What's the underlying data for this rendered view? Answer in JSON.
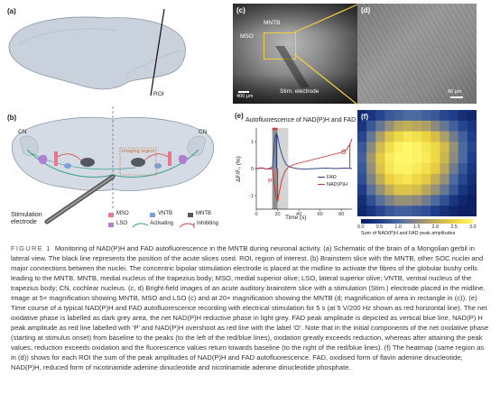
{
  "panels": {
    "a": {
      "label": "(a)",
      "roi_label": "ROI"
    },
    "b": {
      "label": "(b)",
      "cn_left": "CN",
      "cn_right": "CN",
      "imaging_region": "Imaging region",
      "electrode_label": "Stimulation\nelectrode",
      "legend": [
        {
          "name": "MSO",
          "color": "#e8788e"
        },
        {
          "name": "VNTB",
          "color": "#7b9fd6"
        },
        {
          "name": "MNTB",
          "color": "#55575f"
        },
        {
          "name": "LSO",
          "color": "#b17fd0"
        },
        {
          "name": "Activating",
          "color": "#3a9d8c"
        },
        {
          "name": "Inhibiting",
          "color": "#d23c3c"
        }
      ]
    },
    "c": {
      "label": "(c)",
      "mso": "MSO",
      "mntb": "MNTB",
      "stim": "Stim. electrode",
      "scale": "400 μm"
    },
    "d": {
      "label": "(d)",
      "scale": "80 μm"
    },
    "e": {
      "label": "(e)",
      "o_label": "O",
      "p_label": "P"
    },
    "f": {
      "label": "(f)",
      "colorbar_label": "Sum of NAD(P)H and FAD peak amplitudes",
      "ticks": [
        "0.0",
        "0.5",
        "1.0",
        "1.5",
        "2.0",
        "2.5",
        "3.0"
      ]
    }
  },
  "chart_data": {
    "type": "line",
    "title": "Autofluorescence of NAD(P)H and FAD",
    "xlabel": "Time (s)",
    "ylabel": "ΔF/F₀ (%)",
    "xlim": [
      0,
      90
    ],
    "ylim": [
      -1.5,
      1.5
    ],
    "xticks": [
      0,
      20,
      40,
      60,
      80
    ],
    "yticks": [
      -1,
      0,
      1
    ],
    "stimulation_window": [
      15,
      20
    ],
    "series": [
      {
        "name": "FAD",
        "color": "#2b3f86",
        "x": [
          0,
          5,
          10,
          15,
          16,
          17,
          18,
          19,
          20,
          22,
          25,
          28,
          32,
          38,
          45,
          55,
          65,
          75,
          85,
          90
        ],
        "y": [
          0,
          0.02,
          -0.02,
          0.05,
          0.4,
          0.9,
          1.2,
          1.3,
          1.2,
          0.8,
          0.4,
          0.15,
          0.05,
          0.0,
          -0.02,
          0.0,
          0.02,
          0.0,
          0.02,
          0.0
        ]
      },
      {
        "name": "NAD(P)H",
        "color": "#c43030",
        "x": [
          0,
          5,
          10,
          15,
          16,
          17,
          18,
          19,
          20,
          22,
          24,
          27,
          30,
          35,
          40,
          50,
          60,
          70,
          80,
          85,
          88,
          90
        ],
        "y": [
          0,
          0.03,
          -0.02,
          0.0,
          -0.3,
          -0.6,
          -0.9,
          -1.1,
          -1.2,
          -0.8,
          -0.4,
          -0.1,
          0.05,
          0.15,
          0.2,
          0.3,
          0.4,
          0.5,
          0.6,
          0.7,
          0.9,
          1.1
        ]
      }
    ]
  },
  "heatmap": {
    "rows": [
      [
        0.2,
        0.4,
        0.6,
        0.8,
        0.9,
        1.0,
        1.0,
        0.9,
        0.8,
        0.6,
        0.5,
        0.3,
        0.2
      ],
      [
        0.4,
        0.8,
        1.2,
        1.6,
        1.9,
        2.0,
        1.9,
        1.8,
        1.5,
        1.2,
        0.9,
        0.6,
        0.4
      ],
      [
        0.6,
        1.2,
        1.8,
        2.3,
        2.6,
        2.8,
        2.7,
        2.5,
        2.2,
        1.8,
        1.3,
        0.9,
        0.5
      ],
      [
        0.8,
        1.5,
        2.2,
        2.7,
        3.0,
        3.1,
        3.0,
        2.8,
        2.6,
        2.2,
        1.6,
        1.0,
        0.6
      ],
      [
        0.9,
        1.7,
        2.4,
        2.9,
        3.1,
        3.1,
        3.0,
        2.9,
        2.6,
        2.1,
        1.5,
        1.0,
        0.5
      ],
      [
        0.8,
        1.6,
        2.3,
        2.8,
        3.0,
        3.0,
        2.9,
        2.7,
        2.4,
        1.9,
        1.3,
        0.8,
        0.4
      ],
      [
        0.7,
        1.4,
        2.0,
        2.5,
        2.7,
        2.8,
        2.6,
        2.4,
        2.0,
        1.6,
        1.0,
        0.6,
        0.3
      ],
      [
        0.5,
        1.1,
        1.6,
        2.0,
        2.3,
        2.3,
        2.2,
        1.9,
        1.6,
        1.2,
        0.8,
        0.4,
        0.2
      ],
      [
        0.3,
        0.7,
        1.1,
        1.4,
        1.6,
        1.6,
        1.5,
        1.3,
        1.0,
        0.7,
        0.4,
        0.2,
        0.1
      ],
      [
        0.2,
        0.4,
        0.6,
        0.8,
        0.9,
        0.9,
        0.8,
        0.7,
        0.5,
        0.3,
        0.2,
        0.1,
        0.1
      ]
    ]
  },
  "caption": {
    "fig": "FIGURE 1",
    "text": "Monitoring of NAD(P)H and FAD autofluorescence in the MNTB during neuronal activity. (a) Schematic of the brain of a Mongolian gerbil in lateral view. The black line represents the position of the acute slices used. ROI, region of interest. (b) Brainstem slice with the MNTB, other SOC nuclei and major connections between the nuclei. The concentric bipolar stimulation electrode is placed at the midline to activate the fibres of the globular bushy cells leading to the MNTB. MNTB, medial nucleus of the trapezius body; MSO, medial superior olive; LSO, lateral superior olive; VNTB, ventral nucleus of the trapezius body; CN, cochlear nucleus. (c, d) Bright-field images of an acute auditory brainstem slice with a stimulation (Stim.) electrode placed in the midline. Image at 5× magnification showing MNTB, MSO and LSO (c) and at 20× magnification showing the MNTB (d; magnification of area in rectangle in (c)). (e) Time course of a typical NAD(P)H and FAD autofluorescence recording with electrical stimulation for 5 s (at 5 V/200 Hz shown as red horizontal line). The net oxidative phase is labelled as dark grey area, the net NAD(P)H reductive phase in light grey. FAD peak amplitude is depicted as vertical blue line, NAD(P) H peak amplitude as red line labelled with ‘P’ and NAD(P)H overshoot as red line with the label ‘O’. Note that in the initial components of the net oxidative phase (starting at stimulus onset) from baseline to the peaks (to the left of the red/blue lines), oxidation greatly exceeds reduction, whereas after attaining the peak values, reduction exceeds oxidation and the fluorescence values return towards baseline (to the right of the red/blue lines). (f) The heatmap (same region as in (d)) shows for each ROI the sum of the peak amplitudes of NAD(P)H and FAD autofluorescence. FAD, oxidised form of flavin adenine dinucleotide; NAD(P)H, reduced form of nicotinamide adenine dinucleotide and nicotinamide adenine dinucleotide phosphate."
  }
}
